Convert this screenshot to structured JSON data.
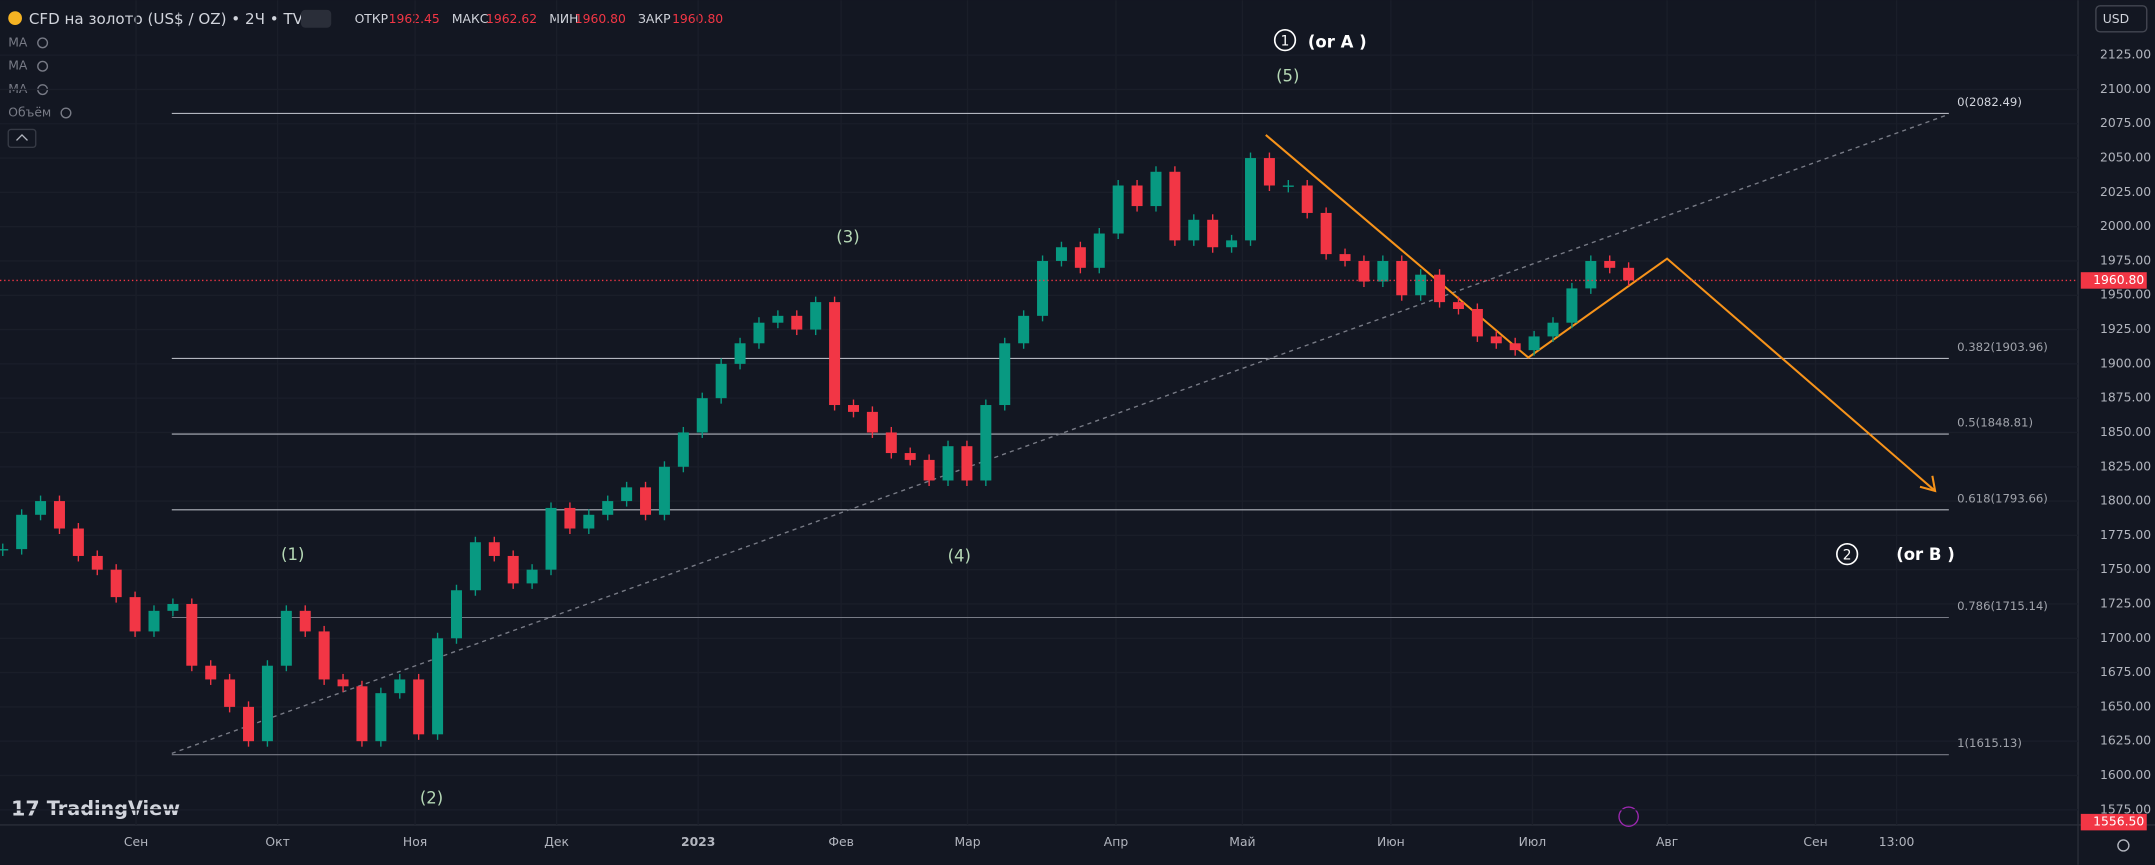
{
  "header": {
    "title": "CFD на золото (US$ / OZ) • 2Ч • TVC",
    "ohlc": [
      {
        "label": "ОТКР",
        "value": "1962.45"
      },
      {
        "label": "МАКС",
        "value": "1962.62"
      },
      {
        "label": "МИН",
        "value": "1960.80"
      },
      {
        "label": "ЗАКР",
        "value": "1960.80"
      }
    ],
    "indicators": [
      "MA",
      "MA",
      "MA",
      "Объём"
    ],
    "currency": "USD"
  },
  "logo": "TradingView",
  "chart_data": {
    "type": "candlestick",
    "closes": [
      1765,
      1790,
      1800,
      1780,
      1760,
      1750,
      1730,
      1705,
      1720,
      1725,
      1680,
      1670,
      1650,
      1625,
      1680,
      1720,
      1705,
      1670,
      1665,
      1625,
      1660,
      1670,
      1630,
      1700,
      1735,
      1770,
      1760,
      1740,
      1750,
      1795,
      1780,
      1790,
      1800,
      1810,
      1790,
      1825,
      1850,
      1875,
      1900,
      1915,
      1930,
      1935,
      1925,
      1945,
      1870,
      1865,
      1850,
      1835,
      1830,
      1815,
      1840,
      1815,
      1870,
      1915,
      1935,
      1975,
      1985,
      1970,
      1995,
      2030,
      2015,
      2040,
      1990,
      2005,
      1985,
      1990,
      2050,
      2030,
      2030,
      2010,
      1980,
      1975,
      1960,
      1975,
      1950,
      1965,
      1945,
      1940,
      1920,
      1915,
      1910,
      1920,
      1930,
      1955,
      1975,
      1970,
      1960.8
    ],
    "up_color": "#089981",
    "down_color": "#f23645",
    "ylim": [
      1564,
      2165
    ],
    "yticks": [
      {
        "value": 2125,
        "label": "2125.00"
      },
      {
        "value": 2100,
        "label": "2100.00"
      },
      {
        "value": 2075,
        "label": "2075.00"
      },
      {
        "value": 2050,
        "label": "2050.00"
      },
      {
        "value": 2025,
        "label": "2025.00"
      },
      {
        "value": 2000,
        "label": "2000.00"
      },
      {
        "value": 1975,
        "label": "1975.00"
      },
      {
        "value": 1950,
        "label": "1950.00"
      },
      {
        "value": 1925,
        "label": "1925.00"
      },
      {
        "value": 1900,
        "label": "1900.00"
      },
      {
        "value": 1875,
        "label": "1875.00"
      },
      {
        "value": 1850,
        "label": "1850.00"
      },
      {
        "value": 1825,
        "label": "1825.00"
      },
      {
        "value": 1800,
        "label": "1800.00"
      },
      {
        "value": 1775,
        "label": "1775.00"
      },
      {
        "value": 1750,
        "label": "1750.00"
      },
      {
        "value": 1725,
        "label": "1725.00"
      },
      {
        "value": 1700,
        "label": "1700.00"
      },
      {
        "value": 1675,
        "label": "1675.00"
      },
      {
        "value": 1650,
        "label": "1650.00"
      },
      {
        "value": 1625,
        "label": "1625.00"
      },
      {
        "value": 1600,
        "label": "1600.00"
      },
      {
        "value": 1575,
        "label": "1575.00"
      }
    ],
    "price_marks": [
      {
        "value": 1960.8,
        "label": "1960.80"
      },
      {
        "value": 1556.5,
        "label": "1556.50"
      }
    ],
    "categories": [
      "Сен",
      "Окт",
      "Ноя",
      "Дек",
      "2023",
      "Фев",
      "Мар",
      "Апр",
      "Май",
      "Июн",
      "Июл",
      "Авг",
      "Сен",
      "13:00"
    ],
    "fib_levels": [
      {
        "value": 2082.49,
        "label": "0(2082.49)"
      },
      {
        "value": 1903.96,
        "label": "0.382(1903.96)"
      },
      {
        "value": 1848.81,
        "label": "0.5(1848.81)"
      },
      {
        "value": 1793.66,
        "label": "0.618(1793.66)"
      },
      {
        "value": 1715.14,
        "label": "0.786(1715.14)"
      },
      {
        "value": 1615.13,
        "label": "1(1615.13)"
      }
    ],
    "annotations": [
      "(1)",
      "(2)",
      "(3)",
      "(4)",
      "(5)",
      "(or A )",
      "(or B )",
      "1",
      "2"
    ]
  }
}
